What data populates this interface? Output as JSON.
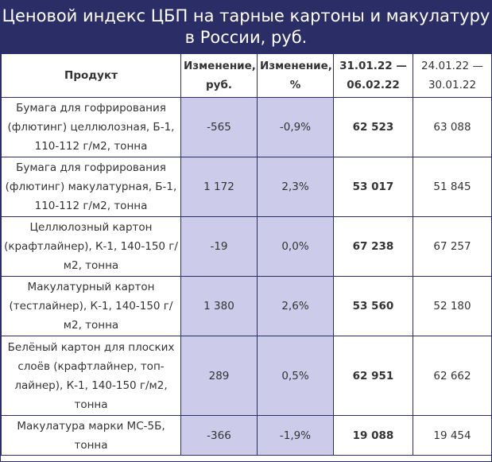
{
  "title": "Ценовой индекс ЦБП на тарные картоны и макулатуру в России, руб.",
  "headers": {
    "product": "Продукт",
    "change_rub": "Изменение, руб.",
    "change_pct": "Изменение, %",
    "period_current": "31.01.22 — 06.02.22",
    "period_previous": "24.01.22 — 30.01.22"
  },
  "rows": [
    {
      "product": "Бумага для гофрирования (флютинг) целлюлозная, Б-1, 110-112 г/м2, тонна",
      "change_rub": "-565",
      "change_pct": "-0,9%",
      "current": "62 523",
      "previous": "63 088"
    },
    {
      "product": "Бумага для гофрирования (флютинг) макулатурная, Б-1, 110-112 г/м2, тонна",
      "change_rub": "1 172",
      "change_pct": "2,3%",
      "current": "53 017",
      "previous": "51 845"
    },
    {
      "product": "Целлюлозный картон (крафтлайнер), К-1, 140-150 г/м2, тонна",
      "change_rub": "-19",
      "change_pct": "0,0%",
      "current": "67 238",
      "previous": "67 257"
    },
    {
      "product": "Макулатурный картон (тестлайнер), К-1, 140-150 г/м2, тонна",
      "change_rub": "1 380",
      "change_pct": "2,6%",
      "current": "53 560",
      "previous": "52 180"
    },
    {
      "product": "Белёный картон для плоских слоёв (крафтлайнер, топ-лайнер), К-1, 140-150 г/м2, тонна",
      "change_rub": "289",
      "change_pct": "0,5%",
      "current": "62 951",
      "previous": "62 662"
    },
    {
      "product": "Макулатура марки МС-5Б, тонна",
      "change_rub": "-366",
      "change_pct": "-1,9%",
      "current": "19 088",
      "previous": "19 454"
    }
  ]
}
